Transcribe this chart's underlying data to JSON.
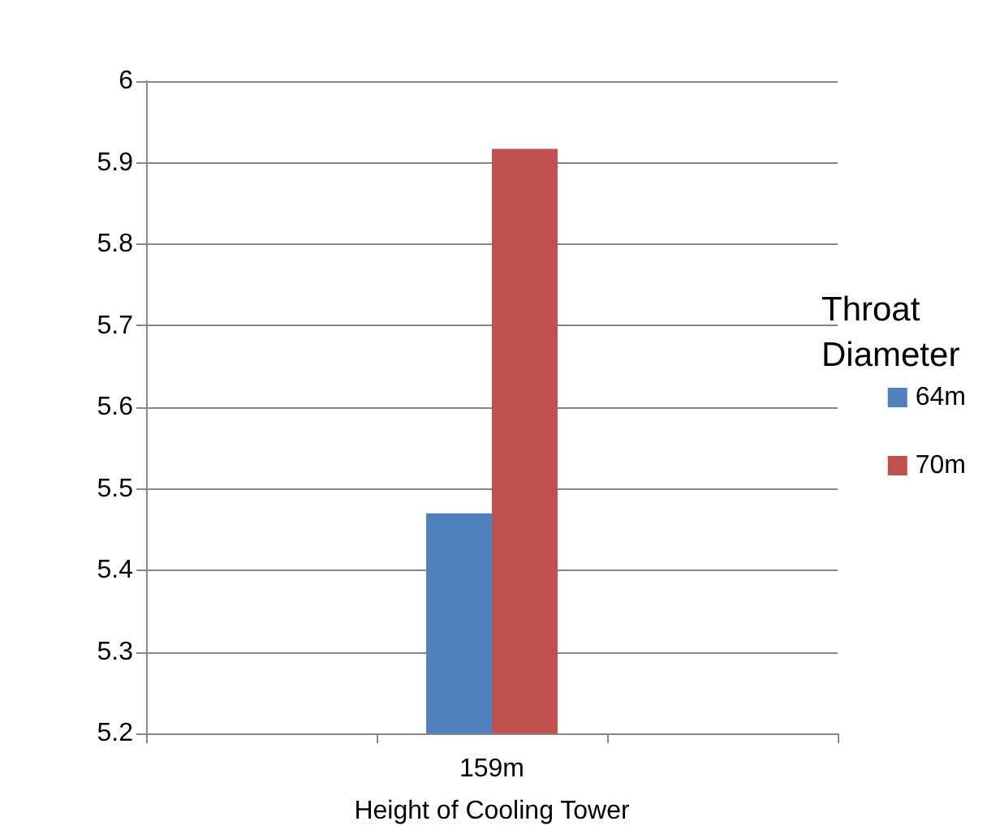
{
  "chart_data": {
    "type": "bar",
    "xlabel": "Height of Cooling Tower",
    "legend_title": "Throat Diameter",
    "categories": [
      null,
      "159m",
      null
    ],
    "series": [
      {
        "name": "64m",
        "color": "#4f81bd",
        "values": [
          null,
          5.47,
          null
        ]
      },
      {
        "name": "70m",
        "color": "#c0504d",
        "values": [
          null,
          5.917,
          null
        ]
      }
    ],
    "ylim": [
      5.2,
      6
    ],
    "yticks": [
      5.2,
      5.3,
      5.4,
      5.5,
      5.6,
      5.7,
      5.8,
      5.9,
      6
    ],
    "grid": "y",
    "legend": "right"
  }
}
